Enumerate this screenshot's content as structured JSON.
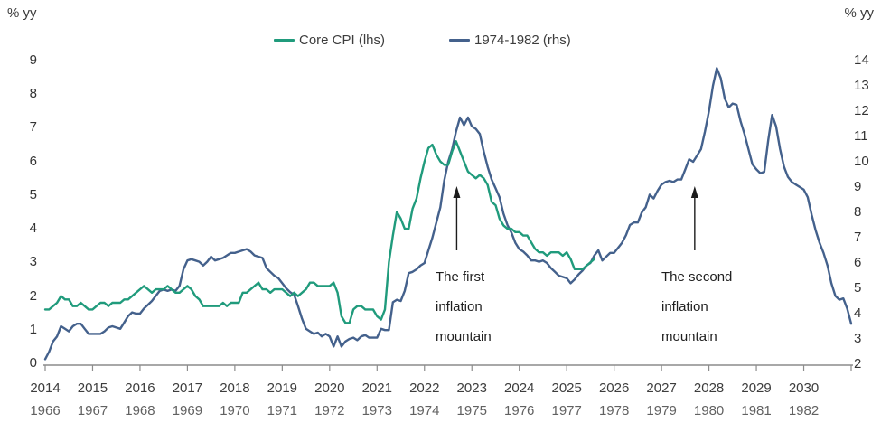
{
  "units": {
    "left": "% yy",
    "right": "% yy"
  },
  "legend": [
    {
      "label": "Core CPI (lhs)",
      "color": "#209b7c"
    },
    {
      "label": "1974-1982 (rhs)",
      "color": "#44618c"
    }
  ],
  "annotations": [
    {
      "text": "The first inflation mountain",
      "arrow_year": 2022.68
    },
    {
      "text": "The second inflation mountain",
      "arrow_year": 2027.7
    }
  ],
  "chart_data": {
    "type": "line",
    "title": "",
    "grid": false,
    "legend_position": "top-center",
    "left_axis": {
      "unit": "% yy",
      "min": 0,
      "max": 9,
      "ticks": [
        0,
        1,
        2,
        3,
        4,
        5,
        6,
        7,
        8,
        9
      ]
    },
    "right_axis": {
      "unit": "% yy",
      "min": 2,
      "max": 14,
      "ticks": [
        2,
        3,
        4,
        5,
        6,
        7,
        8,
        9,
        10,
        11,
        12,
        13,
        14
      ]
    },
    "x_axis": {
      "top_start": 2014,
      "bottom_start": 1966,
      "span_years": 17,
      "top_labels": [
        "2014",
        "2015",
        "2016",
        "2017",
        "2018",
        "2019",
        "2020",
        "2021",
        "2022",
        "2023",
        "2024",
        "2025",
        "2026",
        "2027",
        "2028",
        "2029",
        "2030"
      ],
      "bottom_labels": [
        "1966",
        "1967",
        "1968",
        "1969",
        "1970",
        "1971",
        "1972",
        "1973",
        "1974",
        "1975",
        "1976",
        "1977",
        "1978",
        "1979",
        "1980",
        "1981",
        "1982"
      ]
    },
    "series": [
      {
        "name": "1974-1982 (rhs)",
        "axis": "right",
        "x_axis": "bottom",
        "color": "#44618c",
        "start": 1966.0,
        "frequency": "monthly",
        "values": [
          2.2,
          2.5,
          2.9,
          3.1,
          3.5,
          3.4,
          3.3,
          3.5,
          3.6,
          3.6,
          3.4,
          3.2,
          3.2,
          3.2,
          3.2,
          3.3,
          3.45,
          3.5,
          3.45,
          3.4,
          3.65,
          3.9,
          4.05,
          4.0,
          4.0,
          4.2,
          4.35,
          4.5,
          4.7,
          4.9,
          4.95,
          4.9,
          4.95,
          4.9,
          5.1,
          5.75,
          6.1,
          6.15,
          6.1,
          6.05,
          5.9,
          6.05,
          6.25,
          6.1,
          6.15,
          6.2,
          6.3,
          6.4,
          6.4,
          6.45,
          6.5,
          6.55,
          6.45,
          6.3,
          6.25,
          6.2,
          5.8,
          5.65,
          5.5,
          5.4,
          5.2,
          5.0,
          4.85,
          4.75,
          4.3,
          3.8,
          3.4,
          3.3,
          3.2,
          3.25,
          3.1,
          3.2,
          3.1,
          2.7,
          3.1,
          2.7,
          2.9,
          3.0,
          3.05,
          2.95,
          3.1,
          3.15,
          3.05,
          3.05,
          3.05,
          3.4,
          3.35,
          3.35,
          4.45,
          4.55,
          4.5,
          4.9,
          5.6,
          5.65,
          5.75,
          5.9,
          6.0,
          6.5,
          7.0,
          7.6,
          8.2,
          9.25,
          10.0,
          10.5,
          11.2,
          11.75,
          11.45,
          11.75,
          11.4,
          11.3,
          11.1,
          10.4,
          9.8,
          9.3,
          8.95,
          8.6,
          7.95,
          7.5,
          7.2,
          6.8,
          6.55,
          6.45,
          6.3,
          6.1,
          6.1,
          6.05,
          6.1,
          6.0,
          5.8,
          5.65,
          5.5,
          5.45,
          5.4,
          5.2,
          5.35,
          5.55,
          5.7,
          5.9,
          6.0,
          6.3,
          6.5,
          6.1,
          6.25,
          6.4,
          6.4,
          6.6,
          6.8,
          7.1,
          7.5,
          7.6,
          7.6,
          8.0,
          8.2,
          8.7,
          8.55,
          8.85,
          9.1,
          9.2,
          9.25,
          9.2,
          9.3,
          9.3,
          9.7,
          10.1,
          10.0,
          10.25,
          10.5,
          11.2,
          12.0,
          13.0,
          13.7,
          13.3,
          12.5,
          12.15,
          12.3,
          12.25,
          11.6,
          11.1,
          10.5,
          9.9,
          9.7,
          9.55,
          9.6,
          10.85,
          11.85,
          11.4,
          10.5,
          9.8,
          9.4,
          9.2,
          9.1,
          9.0,
          8.9,
          8.6,
          7.9,
          7.3,
          6.8,
          6.4,
          5.9,
          5.2,
          4.7,
          4.55,
          4.6,
          4.2,
          3.6
        ]
      },
      {
        "name": "Core CPI (lhs)",
        "axis": "left",
        "x_axis": "top",
        "color": "#209b7c",
        "start": 2014.0,
        "frequency": "monthly",
        "values": [
          1.6,
          1.6,
          1.7,
          1.8,
          2.0,
          1.9,
          1.9,
          1.7,
          1.7,
          1.8,
          1.7,
          1.6,
          1.6,
          1.7,
          1.8,
          1.8,
          1.7,
          1.8,
          1.8,
          1.8,
          1.9,
          1.9,
          2.0,
          2.1,
          2.2,
          2.3,
          2.2,
          2.1,
          2.2,
          2.2,
          2.2,
          2.3,
          2.2,
          2.1,
          2.1,
          2.2,
          2.3,
          2.2,
          2.0,
          1.9,
          1.7,
          1.7,
          1.7,
          1.7,
          1.7,
          1.8,
          1.7,
          1.8,
          1.8,
          1.8,
          2.1,
          2.1,
          2.2,
          2.3,
          2.4,
          2.2,
          2.2,
          2.1,
          2.2,
          2.2,
          2.2,
          2.1,
          2.0,
          2.1,
          2.0,
          2.1,
          2.2,
          2.4,
          2.4,
          2.3,
          2.3,
          2.3,
          2.3,
          2.4,
          2.1,
          1.4,
          1.2,
          1.2,
          1.6,
          1.7,
          1.7,
          1.6,
          1.6,
          1.6,
          1.4,
          1.3,
          1.6,
          3.0,
          3.8,
          4.5,
          4.3,
          4.0,
          4.0,
          4.6,
          4.9,
          5.5,
          6.0,
          6.4,
          6.5,
          6.2,
          6.0,
          5.9,
          5.9,
          6.3,
          6.6,
          6.3,
          6.0,
          5.7,
          5.6,
          5.5,
          5.6,
          5.5,
          5.3,
          4.8,
          4.7,
          4.3,
          4.1,
          4.0,
          4.0,
          3.9,
          3.9,
          3.8,
          3.8,
          3.6,
          3.4,
          3.3,
          3.3,
          3.2,
          3.3,
          3.3,
          3.3,
          3.2,
          3.3,
          3.1,
          2.8,
          2.8,
          2.8,
          2.9,
          3.0,
          3.1
        ]
      }
    ]
  }
}
